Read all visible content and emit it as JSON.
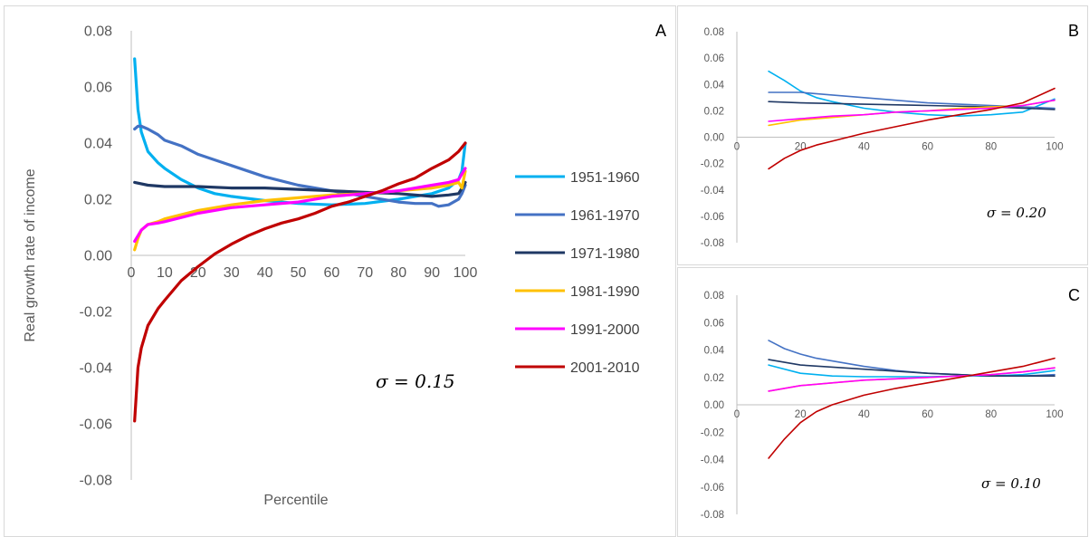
{
  "colors": {
    "1951-1960": "#00b0f0",
    "1961-1970": "#4472c4",
    "1971-1980": "#1f3864",
    "1981-1990": "#ffc000",
    "1991-2000": "#ff00ff",
    "2001-2010": "#c00000",
    "panel_border": "#d9d9d9",
    "axis": "#bfbfbf"
  },
  "chart_data": [
    {
      "panel": "A",
      "type": "line",
      "title": "",
      "xlabel": "Percentile",
      "ylabel": "Real growth rate of income",
      "annotation": "σ = 0.15",
      "xlim": [
        0,
        100
      ],
      "ylim": [
        -0.08,
        0.08
      ],
      "xticks": [
        "0",
        "10",
        "20",
        "30",
        "40",
        "50",
        "60",
        "70",
        "80",
        "90",
        "100"
      ],
      "yticks": [
        "0.08",
        "0.06",
        "0.04",
        "0.02",
        "0.00",
        "-0.02",
        "-0.04",
        "-0.06",
        "-0.08"
      ],
      "legend": "right",
      "series": [
        {
          "name": "1951-1960",
          "x": [
            1,
            2,
            3,
            5,
            8,
            10,
            15,
            20,
            25,
            30,
            40,
            50,
            60,
            70,
            80,
            90,
            95,
            98,
            99,
            100
          ],
          "y": [
            0.07,
            0.052,
            0.044,
            0.037,
            0.033,
            0.031,
            0.027,
            0.024,
            0.022,
            0.021,
            0.0195,
            0.0185,
            0.018,
            0.0185,
            0.02,
            0.022,
            0.024,
            0.027,
            0.03,
            0.04
          ]
        },
        {
          "name": "1961-1970",
          "x": [
            1,
            2,
            3,
            5,
            8,
            10,
            15,
            20,
            25,
            30,
            40,
            50,
            60,
            70,
            80,
            85,
            90,
            92,
            95,
            98,
            99,
            100
          ],
          "y": [
            0.045,
            0.046,
            0.046,
            0.045,
            0.043,
            0.041,
            0.039,
            0.036,
            0.034,
            0.032,
            0.028,
            0.025,
            0.023,
            0.021,
            0.019,
            0.0185,
            0.0185,
            0.0175,
            0.018,
            0.02,
            0.022,
            0.025
          ]
        },
        {
          "name": "1971-1980",
          "x": [
            1,
            5,
            10,
            20,
            30,
            40,
            50,
            60,
            70,
            80,
            90,
            95,
            98,
            100
          ],
          "y": [
            0.026,
            0.025,
            0.0245,
            0.0245,
            0.024,
            0.024,
            0.0235,
            0.023,
            0.0225,
            0.022,
            0.021,
            0.0215,
            0.022,
            0.026
          ]
        },
        {
          "name": "1981-1990",
          "x": [
            1,
            2,
            3,
            5,
            8,
            10,
            15,
            20,
            30,
            40,
            50,
            60,
            70,
            80,
            90,
            95,
            98,
            99,
            100
          ],
          "y": [
            0.002,
            0.006,
            0.009,
            0.011,
            0.012,
            0.013,
            0.0145,
            0.016,
            0.018,
            0.0195,
            0.0205,
            0.0215,
            0.022,
            0.023,
            0.024,
            0.025,
            0.026,
            0.024,
            0.03
          ]
        },
        {
          "name": "1991-2000",
          "x": [
            1,
            2,
            3,
            5,
            8,
            10,
            15,
            20,
            30,
            40,
            50,
            60,
            70,
            80,
            90,
            95,
            98,
            100
          ],
          "y": [
            0.005,
            0.007,
            0.009,
            0.011,
            0.0115,
            0.012,
            0.0135,
            0.015,
            0.017,
            0.018,
            0.019,
            0.021,
            0.022,
            0.023,
            0.025,
            0.026,
            0.027,
            0.031
          ]
        },
        {
          "name": "2001-2010",
          "x": [
            1,
            2,
            3,
            5,
            8,
            10,
            15,
            20,
            25,
            30,
            35,
            40,
            45,
            50,
            55,
            60,
            65,
            70,
            75,
            80,
            85,
            90,
            95,
            98,
            100
          ],
          "y": [
            -0.059,
            -0.04,
            -0.033,
            -0.025,
            -0.019,
            -0.016,
            -0.009,
            -0.004,
            0.0005,
            0.004,
            0.007,
            0.0095,
            0.0115,
            0.013,
            0.015,
            0.0175,
            0.019,
            0.021,
            0.023,
            0.0255,
            0.0275,
            0.031,
            0.034,
            0.037,
            0.04
          ]
        }
      ]
    },
    {
      "panel": "B",
      "type": "line",
      "title": "",
      "xlabel": "",
      "ylabel": "",
      "annotation": "σ = 0.20",
      "xlim": [
        0,
        100
      ],
      "ylim": [
        -0.08,
        0.08
      ],
      "xticks": [
        "0",
        "20",
        "40",
        "60",
        "80",
        "100"
      ],
      "yticks": [
        "0.08",
        "0.06",
        "0.04",
        "0.02",
        "0.00",
        "-0.02",
        "-0.04",
        "-0.06",
        "-0.08"
      ],
      "series": [
        {
          "name": "1951-1960",
          "x": [
            10,
            15,
            20,
            25,
            30,
            40,
            50,
            60,
            70,
            80,
            90,
            100
          ],
          "y": [
            0.05,
            0.043,
            0.035,
            0.03,
            0.027,
            0.022,
            0.019,
            0.017,
            0.016,
            0.017,
            0.019,
            0.029
          ]
        },
        {
          "name": "1961-1970",
          "x": [
            10,
            20,
            30,
            40,
            50,
            60,
            70,
            80,
            90,
            100
          ],
          "y": [
            0.034,
            0.034,
            0.032,
            0.03,
            0.028,
            0.026,
            0.025,
            0.024,
            0.023,
            0.022
          ]
        },
        {
          "name": "1971-1980",
          "x": [
            10,
            20,
            40,
            60,
            80,
            100
          ],
          "y": [
            0.027,
            0.026,
            0.025,
            0.024,
            0.023,
            0.021
          ]
        },
        {
          "name": "1981-1990",
          "x": [
            10,
            20,
            30,
            40,
            50,
            60,
            70,
            80,
            90,
            100
          ],
          "y": [
            0.009,
            0.013,
            0.015,
            0.017,
            0.019,
            0.02,
            0.022,
            0.023,
            0.024,
            0.028
          ]
        },
        {
          "name": "1991-2000",
          "x": [
            10,
            20,
            30,
            40,
            50,
            60,
            70,
            80,
            90,
            100
          ],
          "y": [
            0.012,
            0.014,
            0.016,
            0.017,
            0.019,
            0.02,
            0.021,
            0.022,
            0.024,
            0.028
          ]
        },
        {
          "name": "2001-2010",
          "x": [
            10,
            15,
            20,
            25,
            30,
            40,
            50,
            60,
            70,
            80,
            90,
            100
          ],
          "y": [
            -0.024,
            -0.016,
            -0.01,
            -0.006,
            -0.003,
            0.003,
            0.008,
            0.013,
            0.017,
            0.021,
            0.026,
            0.037
          ]
        }
      ]
    },
    {
      "panel": "C",
      "type": "line",
      "title": "",
      "xlabel": "",
      "ylabel": "",
      "annotation": "σ = 0.10",
      "xlim": [
        0,
        100
      ],
      "ylim": [
        -0.08,
        0.08
      ],
      "xticks": [
        "0",
        "20",
        "40",
        "60",
        "80",
        "100"
      ],
      "yticks": [
        "0.08",
        "0.06",
        "0.04",
        "0.02",
        "0.00",
        "-0.02",
        "-0.04",
        "-0.06",
        "-0.08"
      ],
      "series": [
        {
          "name": "1951-1960",
          "x": [
            10,
            20,
            30,
            40,
            50,
            60,
            70,
            80,
            90,
            100
          ],
          "y": [
            0.029,
            0.023,
            0.021,
            0.0205,
            0.0205,
            0.0205,
            0.021,
            0.021,
            0.022,
            0.025
          ]
        },
        {
          "name": "1961-1970",
          "x": [
            10,
            15,
            20,
            25,
            30,
            40,
            50,
            60,
            70,
            80,
            90,
            100
          ],
          "y": [
            0.047,
            0.041,
            0.037,
            0.034,
            0.032,
            0.028,
            0.025,
            0.023,
            0.022,
            0.021,
            0.021,
            0.022
          ]
        },
        {
          "name": "1971-1980",
          "x": [
            10,
            20,
            40,
            60,
            80,
            100
          ],
          "y": [
            0.033,
            0.029,
            0.026,
            0.023,
            0.021,
            0.021
          ]
        },
        {
          "name": "1981-1990",
          "x": [
            10,
            20,
            30,
            40,
            50,
            60,
            70,
            80,
            90,
            100
          ],
          "y": [
            0.01,
            0.014,
            0.016,
            0.018,
            0.019,
            0.02,
            0.021,
            0.022,
            0.024,
            0.027
          ]
        },
        {
          "name": "1991-2000",
          "x": [
            10,
            20,
            30,
            40,
            50,
            60,
            70,
            80,
            90,
            100
          ],
          "y": [
            0.01,
            0.014,
            0.016,
            0.018,
            0.019,
            0.02,
            0.021,
            0.022,
            0.024,
            0.027
          ]
        },
        {
          "name": "2001-2010",
          "x": [
            10,
            15,
            20,
            25,
            30,
            40,
            50,
            60,
            70,
            80,
            90,
            100
          ],
          "y": [
            -0.039,
            -0.025,
            -0.013,
            -0.005,
            0.0,
            0.007,
            0.012,
            0.016,
            0.02,
            0.024,
            0.028,
            0.034
          ]
        }
      ]
    }
  ]
}
